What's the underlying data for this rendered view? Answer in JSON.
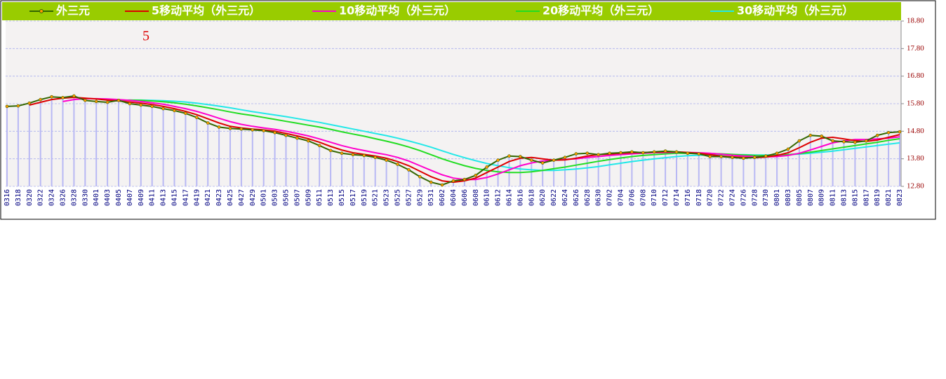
{
  "chart_data": {
    "type": "line",
    "annotation": "5",
    "legend": "top",
    "grid": true,
    "categories": [
      "0316",
      "0318",
      "0320",
      "0322",
      "0324",
      "0326",
      "0328",
      "0330",
      "0401",
      "0403",
      "0405",
      "0407",
      "0409",
      "0411",
      "0413",
      "0415",
      "0417",
      "0419",
      "0421",
      "0423",
      "0425",
      "0427",
      "0429",
      "0501",
      "0503",
      "0505",
      "0507",
      "0509",
      "0511",
      "0513",
      "0515",
      "0517",
      "0519",
      "0521",
      "0523",
      "0525",
      "0527",
      "0529",
      "0531",
      "0602",
      "0604",
      "0606",
      "0608",
      "0610",
      "0612",
      "0614",
      "0616",
      "0618",
      "0620",
      "0622",
      "0624",
      "0626",
      "0628",
      "0630",
      "0702",
      "0704",
      "0706",
      "0708",
      "0710",
      "0712",
      "0714",
      "0716",
      "0718",
      "0720",
      "0722",
      "0724",
      "0726",
      "0728",
      "0730",
      "0801",
      "0803",
      "0805",
      "0807",
      "0809",
      "0811",
      "0813",
      "0815",
      "0817",
      "0819",
      "0821",
      "0823"
    ],
    "ylim": [
      12.8,
      18.8
    ],
    "yticks": [
      {
        "value": 12.8,
        "label": "12.80"
      },
      {
        "value": 13.8,
        "label": "13.80"
      },
      {
        "value": 14.8,
        "label": "14.80"
      },
      {
        "value": 15.8,
        "label": "15.80"
      },
      {
        "value": 16.8,
        "label": "16.80"
      },
      {
        "value": 17.8,
        "label": "17.80"
      },
      {
        "value": 18.8,
        "label": "18.80"
      }
    ],
    "series": [
      {
        "name": "外三元",
        "color": "#336600",
        "values": [
          15.7,
          15.72,
          15.82,
          15.95,
          16.05,
          16.02,
          16.08,
          15.92,
          15.88,
          15.85,
          15.92,
          15.8,
          15.75,
          15.7,
          15.62,
          15.55,
          15.45,
          15.3,
          15.1,
          14.95,
          14.9,
          14.88,
          14.85,
          14.82,
          14.75,
          14.65,
          14.55,
          14.45,
          14.28,
          14.1,
          14.0,
          13.95,
          13.92,
          13.85,
          13.75,
          13.6,
          13.4,
          13.15,
          12.95,
          12.85,
          13.0,
          13.05,
          13.2,
          13.5,
          13.75,
          13.9,
          13.88,
          13.75,
          13.65,
          13.75,
          13.85,
          13.98,
          14.0,
          13.95,
          14.0,
          14.02,
          14.05,
          14.02,
          14.05,
          14.08,
          14.05,
          14.0,
          13.98,
          13.88,
          13.88,
          13.85,
          13.82,
          13.85,
          13.9,
          14.0,
          14.15,
          14.45,
          14.65,
          14.62,
          14.45,
          14.42,
          14.4,
          14.45,
          14.65,
          14.75,
          14.78
        ]
      },
      {
        "name": "5移动平均（外三元）",
        "color": "#dd0000",
        "values": [
          null,
          null,
          15.75,
          15.85,
          15.95,
          16.0,
          16.03,
          16.0,
          15.97,
          15.93,
          15.9,
          15.86,
          15.82,
          15.77,
          15.7,
          15.62,
          15.52,
          15.4,
          15.25,
          15.1,
          14.98,
          14.92,
          14.88,
          14.85,
          14.8,
          14.72,
          14.63,
          14.53,
          14.4,
          14.25,
          14.12,
          14.02,
          13.96,
          13.9,
          13.82,
          13.7,
          13.55,
          13.35,
          13.15,
          13.0,
          12.95,
          13.0,
          13.1,
          13.3,
          13.5,
          13.7,
          13.82,
          13.85,
          13.8,
          13.75,
          13.76,
          13.82,
          13.9,
          13.95,
          13.97,
          14.0,
          14.02,
          14.03,
          14.04,
          14.05,
          14.05,
          14.03,
          14.0,
          13.95,
          13.9,
          13.87,
          13.85,
          13.84,
          13.86,
          13.92,
          14.02,
          14.2,
          14.4,
          14.55,
          14.58,
          14.52,
          14.46,
          14.43,
          14.48,
          14.58,
          14.68
        ]
      },
      {
        "name": "10移动平均（外三元）",
        "color": "#ff00cc",
        "values": [
          null,
          null,
          null,
          null,
          null,
          15.88,
          15.95,
          15.98,
          15.98,
          15.97,
          15.95,
          15.92,
          15.88,
          15.83,
          15.78,
          15.7,
          15.62,
          15.52,
          15.4,
          15.27,
          15.15,
          15.05,
          14.98,
          14.92,
          14.87,
          14.8,
          14.72,
          14.63,
          14.52,
          14.4,
          14.28,
          14.18,
          14.1,
          14.02,
          13.95,
          13.85,
          13.72,
          13.55,
          13.38,
          13.22,
          13.1,
          13.05,
          13.05,
          13.12,
          13.25,
          13.4,
          13.55,
          13.65,
          13.72,
          13.75,
          13.78,
          13.8,
          13.85,
          13.88,
          13.92,
          13.95,
          13.98,
          14.0,
          14.02,
          14.03,
          14.04,
          14.03,
          14.02,
          14.0,
          13.97,
          13.93,
          13.9,
          13.88,
          13.87,
          13.88,
          13.92,
          14.0,
          14.12,
          14.25,
          14.38,
          14.45,
          14.5,
          14.5,
          14.52,
          14.55,
          14.6
        ]
      },
      {
        "name": "20移动平均（外三元）",
        "color": "#22dd22",
        "values": [
          null,
          null,
          null,
          null,
          null,
          null,
          null,
          null,
          null,
          null,
          15.92,
          15.93,
          15.92,
          15.9,
          15.87,
          15.83,
          15.78,
          15.72,
          15.65,
          15.58,
          15.5,
          15.43,
          15.37,
          15.3,
          15.23,
          15.16,
          15.09,
          15.02,
          14.95,
          14.87,
          14.78,
          14.7,
          14.62,
          14.53,
          14.44,
          14.34,
          14.23,
          14.1,
          13.95,
          13.8,
          13.67,
          13.55,
          13.45,
          13.38,
          13.33,
          13.3,
          13.3,
          13.33,
          13.38,
          13.44,
          13.5,
          13.57,
          13.64,
          13.71,
          13.77,
          13.83,
          13.88,
          13.92,
          13.95,
          13.98,
          14.0,
          14.0,
          14.0,
          13.99,
          13.98,
          13.96,
          13.94,
          13.92,
          13.91,
          13.92,
          13.95,
          13.99,
          14.04,
          14.1,
          14.16,
          14.22,
          14.28,
          14.34,
          14.4,
          14.47,
          14.53
        ]
      },
      {
        "name": "30移动平均（外三元）",
        "color": "#22e8e8",
        "values": [
          null,
          null,
          null,
          null,
          null,
          null,
          null,
          null,
          null,
          null,
          15.92,
          15.93,
          15.93,
          15.92,
          15.91,
          15.89,
          15.86,
          15.82,
          15.77,
          15.71,
          15.65,
          15.58,
          15.51,
          15.45,
          15.39,
          15.33,
          15.26,
          15.19,
          15.12,
          15.04,
          14.96,
          14.88,
          14.8,
          14.72,
          14.64,
          14.55,
          14.45,
          14.34,
          14.22,
          14.09,
          13.96,
          13.84,
          13.73,
          13.63,
          13.55,
          13.48,
          13.43,
          13.4,
          13.38,
          13.38,
          13.4,
          13.43,
          13.47,
          13.52,
          13.58,
          13.64,
          13.7,
          13.75,
          13.8,
          13.84,
          13.88,
          13.91,
          13.93,
          13.94,
          13.95,
          13.95,
          13.95,
          13.94,
          13.94,
          13.94,
          13.95,
          13.97,
          14.0,
          14.04,
          14.08,
          14.13,
          14.18,
          14.23,
          14.28,
          14.33,
          14.38
        ]
      }
    ]
  }
}
